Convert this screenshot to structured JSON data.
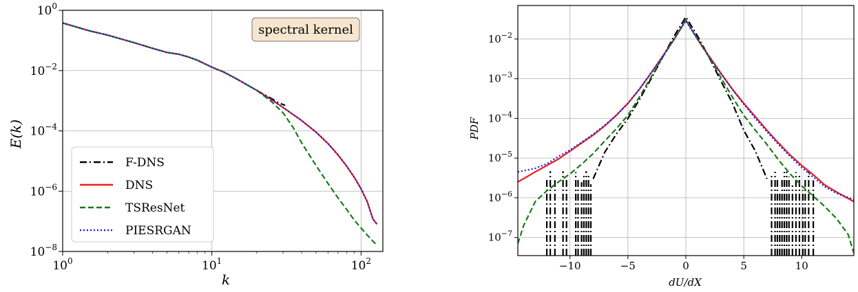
{
  "chart_data": [
    {
      "type": "line",
      "xscale": "log",
      "yscale": "log",
      "xlabel": "k",
      "ylabel": "E(k)",
      "xlim": [
        1,
        140
      ],
      "ylim": [
        1e-08,
        1
      ],
      "grid": true,
      "annotation": "spectral kernel",
      "legend_position": "lower-left",
      "x_ticks": [
        {
          "value": 1,
          "base": "10",
          "exp": "0"
        },
        {
          "value": 10,
          "base": "10",
          "exp": "1"
        },
        {
          "value": 100,
          "base": "10",
          "exp": "2"
        }
      ],
      "y_ticks": [
        {
          "value": 1e-08,
          "base": "10",
          "exp": "−8"
        },
        {
          "value": 1e-06,
          "base": "10",
          "exp": "−6"
        },
        {
          "value": 0.0001,
          "base": "10",
          "exp": "−4"
        },
        {
          "value": 0.01,
          "base": "10",
          "exp": "−2"
        },
        {
          "value": 1,
          "base": "10",
          "exp": "0"
        }
      ],
      "series": [
        {
          "name": "F-DNS",
          "color": "#000000",
          "dash": "dashdot",
          "x": [
            1,
            1.5,
            2,
            3,
            4,
            5,
            6,
            7,
            8,
            10,
            12,
            15,
            20,
            25,
            28,
            30,
            31
          ],
          "y": [
            0.38,
            0.21,
            0.15,
            0.085,
            0.055,
            0.04,
            0.035,
            0.028,
            0.022,
            0.013,
            0.009,
            0.005,
            0.0022,
            0.0012,
            0.00085,
            0.00075,
            0.0007
          ]
        },
        {
          "name": "DNS",
          "color": "#ee1c1c",
          "dash": "solid",
          "x": [
            1,
            1.5,
            2,
            3,
            4,
            5,
            6,
            7,
            8,
            10,
            12,
            15,
            20,
            25,
            30,
            40,
            50,
            60,
            70,
            80,
            90,
            100,
            110,
            120,
            128
          ],
          "y": [
            0.38,
            0.21,
            0.15,
            0.085,
            0.055,
            0.04,
            0.035,
            0.028,
            0.022,
            0.013,
            0.009,
            0.005,
            0.0022,
            0.0011,
            0.0006,
            0.00022,
            9e-05,
            3.8e-05,
            1.6e-05,
            6.8e-06,
            2.9e-06,
            1.2e-06,
            4.5e-07,
            1.2e-07,
            8e-08
          ]
        },
        {
          "name": "TSResNet",
          "color": "#1a7a1a",
          "dash": "dashed",
          "x": [
            1,
            1.5,
            2,
            3,
            4,
            5,
            6,
            7,
            8,
            10,
            12,
            15,
            20,
            25,
            30,
            35,
            40,
            50,
            60,
            70,
            80,
            90,
            100,
            110,
            120,
            128
          ],
          "y": [
            0.38,
            0.21,
            0.15,
            0.085,
            0.055,
            0.04,
            0.035,
            0.028,
            0.022,
            0.013,
            0.009,
            0.005,
            0.0022,
            0.00095,
            0.0004,
            0.00013,
            4e-05,
            7e-06,
            1.8e-06,
            6e-07,
            2.5e-07,
            1.1e-07,
            6e-08,
            3.5e-08,
            2.2e-08,
            1.6e-08
          ]
        },
        {
          "name": "PIESRGAN",
          "color": "#1a1aee",
          "dash": "dotted",
          "x": [
            1,
            1.5,
            2,
            3,
            4,
            5,
            6,
            7,
            8,
            10,
            12,
            15,
            20,
            25,
            30,
            40,
            50,
            60,
            70,
            80,
            90,
            100,
            110,
            120,
            128
          ],
          "y": [
            0.38,
            0.21,
            0.15,
            0.085,
            0.055,
            0.04,
            0.035,
            0.028,
            0.022,
            0.013,
            0.009,
            0.005,
            0.0022,
            0.0011,
            0.0006,
            0.00022,
            9e-05,
            3.8e-05,
            1.6e-05,
            6.8e-06,
            2.9e-06,
            1.2e-06,
            4.5e-07,
            1.2e-07,
            8e-08
          ]
        }
      ]
    },
    {
      "type": "line",
      "yscale": "log",
      "xlabel": "dU/dX",
      "ylabel": "PDF",
      "xlim": [
        -14.5,
        14.5
      ],
      "ylim": [
        3.5e-08,
        0.07
      ],
      "grid": true,
      "x_ticks": [
        {
          "value": -10,
          "label": "−10"
        },
        {
          "value": -5,
          "label": "−5"
        },
        {
          "value": 0,
          "label": "0"
        },
        {
          "value": 5,
          "label": "5"
        },
        {
          "value": 10,
          "label": "10"
        }
      ],
      "y_ticks": [
        {
          "value": 1e-07,
          "base": "10",
          "exp": "−7"
        },
        {
          "value": 1e-06,
          "base": "10",
          "exp": "−6"
        },
        {
          "value": 1e-05,
          "base": "10",
          "exp": "−5"
        },
        {
          "value": 0.0001,
          "base": "10",
          "exp": "−4"
        },
        {
          "value": 0.001,
          "base": "10",
          "exp": "−3"
        },
        {
          "value": 0.01,
          "base": "10",
          "exp": "−2"
        }
      ],
      "series": [
        {
          "name": "F-DNS",
          "color": "#000000",
          "dash": "dashdot",
          "x": [
            -8,
            -7,
            -6,
            -5,
            -4,
            -3,
            -2,
            -1,
            0,
            1,
            2,
            3,
            4,
            5,
            6,
            7
          ],
          "y": [
            3e-06,
            1.4e-05,
            4e-05,
            0.0001,
            0.0003,
            0.001,
            0.0035,
            0.012,
            0.036,
            0.012,
            0.0035,
            0.0009,
            0.00025,
            5e-05,
            1.5e-05,
            3e-06
          ],
          "spikes_x": [
            -12,
            -11.7,
            -11.3,
            -10.6,
            -10.3,
            -9.5,
            -9.3,
            -9,
            -8.8,
            -8.6,
            -8.4,
            -8.2,
            7.4,
            7.7,
            7.9,
            8.1,
            8.3,
            8.5,
            8.7,
            8.9,
            9.2,
            9.5,
            9.8,
            10.1,
            10.3,
            10.6,
            11
          ]
        },
        {
          "name": "DNS",
          "color": "#ee1c1c",
          "dash": "solid",
          "x": [
            -14.5,
            -13,
            -12,
            -11,
            -10,
            -9,
            -8,
            -7,
            -6,
            -5,
            -4,
            -3,
            -2,
            -1,
            0,
            1,
            2,
            3,
            4,
            5,
            6,
            7,
            8,
            9,
            10,
            11,
            12,
            13,
            14.5
          ],
          "y": [
            2.5e-06,
            4.5e-06,
            6.5e-06,
            9.5e-06,
            1.5e-05,
            2.4e-05,
            3.8e-05,
            6.5e-05,
            0.00012,
            0.00024,
            0.00055,
            0.0014,
            0.0037,
            0.01,
            0.03,
            0.01,
            0.0037,
            0.0014,
            0.00055,
            0.00024,
            0.00011,
            5e-05,
            2.4e-05,
            1.2e-05,
            6.5e-06,
            3.8e-06,
            2.1e-06,
            1.4e-06,
            8e-07
          ]
        },
        {
          "name": "TSResNet",
          "color": "#1a7a1a",
          "dash": "dashed",
          "x": [
            -14.5,
            -14,
            -13,
            -12,
            -11,
            -10,
            -9,
            -8,
            -7,
            -6,
            -5,
            -4,
            -3,
            -2,
            -1,
            0,
            1,
            2,
            3,
            4,
            5,
            6,
            7,
            8,
            9,
            10,
            11,
            12,
            13,
            14,
            14.5
          ],
          "y": [
            7e-08,
            2e-07,
            8e-07,
            1.5e-06,
            2.5e-06,
            4e-06,
            7e-06,
            1.3e-05,
            2.7e-05,
            5.5e-05,
            0.00012,
            0.00035,
            0.0011,
            0.0035,
            0.01,
            0.03,
            0.01,
            0.0035,
            0.0011,
            0.00035,
            0.00012,
            5e-05,
            2.2e-05,
            9e-06,
            4e-06,
            2e-06,
            1.1e-06,
            6e-07,
            3e-07,
            1.2e-07,
            4e-08
          ]
        },
        {
          "name": "PIESRGAN",
          "color": "#1a1aee",
          "dash": "dotted",
          "x": [
            -14.5,
            -13,
            -12,
            -11,
            -10,
            -9,
            -8,
            -7,
            -6,
            -5,
            -4,
            -3,
            -2,
            -1,
            0,
            1,
            2,
            3,
            4,
            5,
            6,
            7,
            8,
            9,
            10,
            11,
            12,
            13,
            14.5
          ],
          "y": [
            4.5e-06,
            5.5e-06,
            7.2e-06,
            1.1e-05,
            1.6e-05,
            2.5e-05,
            4e-05,
            6.7e-05,
            0.00012,
            0.00024,
            0.00055,
            0.0014,
            0.0036,
            0.01,
            0.029,
            0.01,
            0.0036,
            0.0014,
            0.00055,
            0.00023,
            0.0001,
            4.6e-05,
            2.2e-05,
            1.1e-05,
            5.8e-06,
            3.3e-06,
            1.9e-06,
            1.3e-06,
            9e-07
          ]
        }
      ]
    }
  ]
}
